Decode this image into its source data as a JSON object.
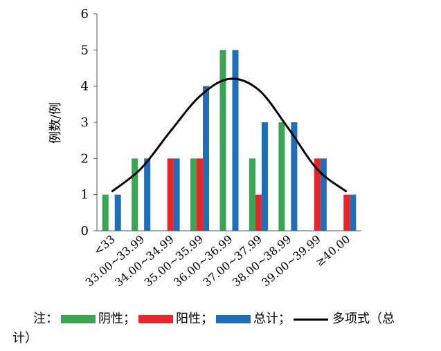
{
  "chart_data": {
    "type": "bar",
    "ylabel": "例数/例",
    "ylim": [
      0,
      6
    ],
    "yticks": [
      0,
      1,
      2,
      3,
      4,
      5,
      6
    ],
    "categories": [
      "<33",
      "33.00~33.99",
      "34.00~34.99",
      "35.00~35.99",
      "36.00~36.99",
      "37.00~37.99",
      "38.00~38.99",
      "39.00~39.99",
      "≥40.00"
    ],
    "series": [
      {
        "name": "阴性",
        "color": "#3aa655",
        "values": [
          1,
          2,
          0,
          2,
          5,
          2,
          3,
          0,
          0
        ]
      },
      {
        "name": "阳性",
        "color": "#e8262a",
        "values": [
          0,
          0,
          2,
          2,
          0,
          1,
          0,
          2,
          1
        ]
      },
      {
        "name": "总计",
        "color": "#1f6fb8",
        "values": [
          1,
          2,
          2,
          4,
          5,
          3,
          3,
          2,
          1
        ]
      }
    ],
    "trendline": {
      "name": "多项式（总计）",
      "type": "polynomial",
      "color": "#000000",
      "values": [
        1.08,
        1.72,
        2.75,
        3.72,
        4.2,
        3.9,
        2.85,
        1.7,
        1.08
      ]
    },
    "legend_position": "bottom",
    "grid": false
  },
  "legend": {
    "prefix": "注：",
    "neg": "阴性；",
    "pos": "阳性；",
    "total": "总计；",
    "trend": "多项式（总",
    "trend_cont": "计）"
  }
}
